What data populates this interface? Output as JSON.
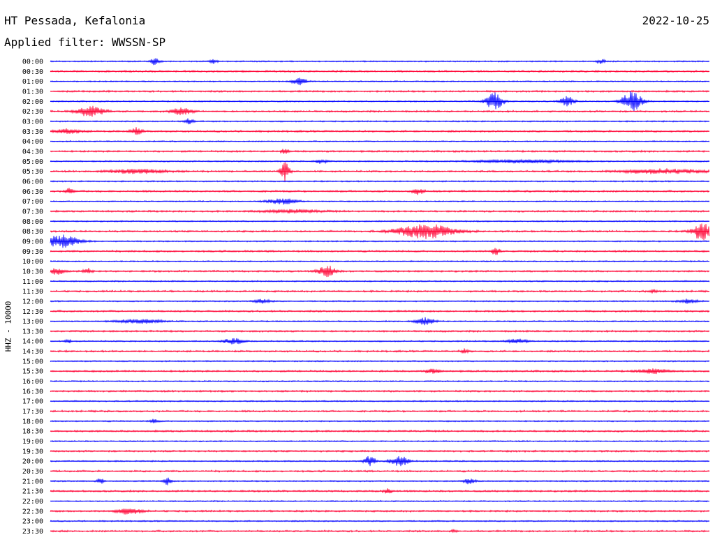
{
  "header": {
    "station": "HT Pessada, Kefalonia",
    "filter": "Applied filter: WWSSN-SP",
    "date": "2022-10-25"
  },
  "chart_data": {
    "type": "line",
    "ylabel": "HHZ - 10000",
    "rows": [
      "00:00",
      "00:30",
      "01:00",
      "01:30",
      "02:00",
      "02:30",
      "03:00",
      "03:30",
      "04:00",
      "04:30",
      "05:00",
      "05:30",
      "06:00",
      "06:30",
      "07:00",
      "07:30",
      "08:00",
      "08:30",
      "09:00",
      "09:30",
      "10:00",
      "10:30",
      "11:00",
      "11:30",
      "12:00",
      "12:30",
      "13:00",
      "13:30",
      "14:00",
      "14:30",
      "15:00",
      "15:30",
      "16:00",
      "16:30",
      "17:00",
      "17:30",
      "18:00",
      "18:30",
      "19:00",
      "19:30",
      "20:00",
      "20:30",
      "21:00",
      "21:30",
      "22:00",
      "22:30",
      "23:00",
      "23:30"
    ],
    "series_colors": [
      "#0000ff",
      "#ff0033"
    ],
    "grid": false
  }
}
